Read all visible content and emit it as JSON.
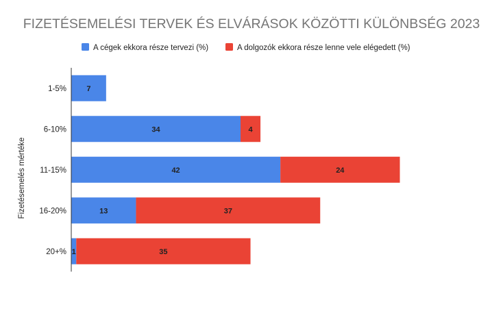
{
  "chart_data": {
    "type": "bar",
    "orientation": "horizontal",
    "stacked": true,
    "title": "FIZETÉSEMELÉSI TERVEK ÉS ELVÁRÁSOK KÖZÖTTI KÜLÖNBSÉG 2023",
    "ylabel": "Fizetésemelés mértéke",
    "xlabel": "",
    "categories": [
      "1-5%",
      "6-10%",
      "11-15%",
      "16-20%",
      "20+%"
    ],
    "series": [
      {
        "name": "A cégek ekkora része tervezi (%)",
        "color": "#4a86e8",
        "values": [
          7,
          34,
          42,
          13,
          1
        ]
      },
      {
        "name": "A dolgozók ekkora része lenne vele elégedett (%)",
        "color": "#ea4335",
        "values": [
          0,
          4,
          24,
          37,
          35
        ]
      }
    ],
    "xlim": [
      0,
      83
    ],
    "grid": false,
    "legend_position": "top"
  }
}
